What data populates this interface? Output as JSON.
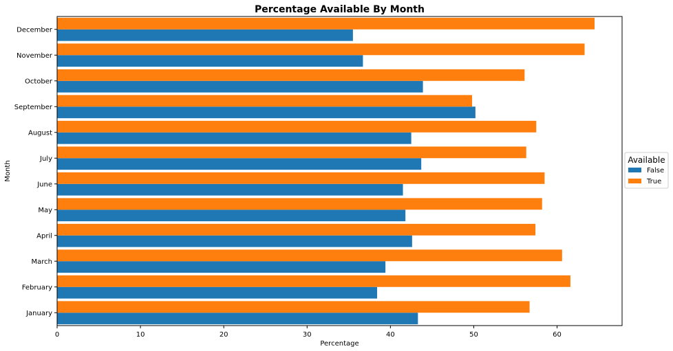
{
  "chart_data": {
    "type": "bar",
    "orientation": "horizontal",
    "title": "Percentage Available By Month",
    "xlabel": "Percentage",
    "ylabel": "Month",
    "xlim": [
      0,
      67.8
    ],
    "xticks": [
      0,
      10,
      20,
      30,
      40,
      50,
      60
    ],
    "categories": [
      "January",
      "February",
      "March",
      "April",
      "May",
      "June",
      "July",
      "August",
      "September",
      "October",
      "November",
      "December"
    ],
    "series": [
      {
        "name": "False",
        "color": "#1f77b4",
        "values": [
          43.3,
          38.4,
          39.4,
          42.6,
          41.8,
          41.5,
          43.7,
          42.5,
          50.2,
          43.9,
          36.7,
          35.5
        ]
      },
      {
        "name": "True",
        "color": "#ff7f0e",
        "values": [
          56.7,
          61.6,
          60.6,
          57.4,
          58.2,
          58.5,
          56.3,
          57.5,
          49.8,
          56.1,
          63.3,
          64.5
        ]
      }
    ],
    "legend": {
      "title": "Available",
      "position": "center-right"
    },
    "grid": false
  }
}
